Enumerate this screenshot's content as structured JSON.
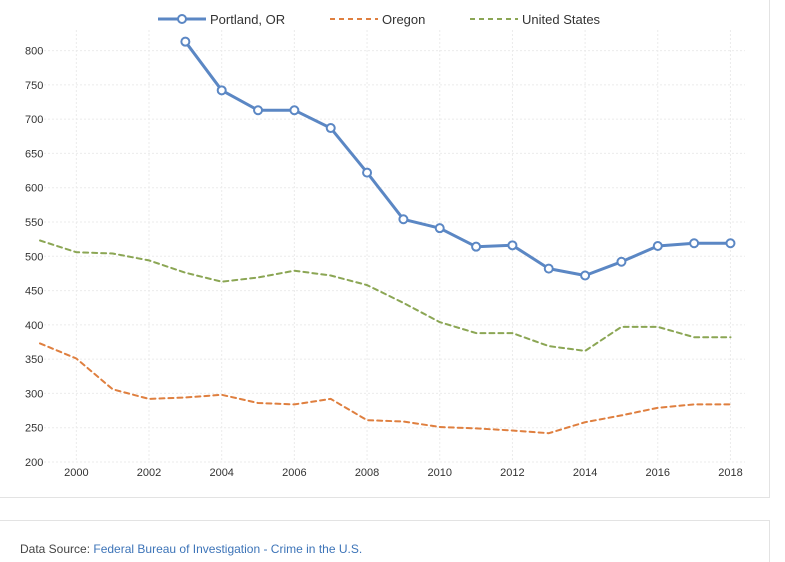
{
  "chart_data": {
    "type": "line",
    "title": "",
    "xlabel": "",
    "ylabel": "",
    "xlim": [
      1999,
      2018.4
    ],
    "ylim": [
      200,
      830
    ],
    "y_ticks": [
      200,
      250,
      300,
      350,
      400,
      450,
      500,
      550,
      600,
      650,
      700,
      750,
      800
    ],
    "x_ticks": [
      2000,
      2002,
      2004,
      2006,
      2008,
      2010,
      2012,
      2014,
      2016,
      2018
    ],
    "grid": true,
    "legend_position": "top",
    "series": [
      {
        "name": "Portland, OR",
        "color": "#5b87c4",
        "style": "solid-markers",
        "x": [
          2003,
          2004,
          2005,
          2006,
          2007,
          2008,
          2009,
          2010,
          2011,
          2012,
          2013,
          2014,
          2015,
          2016,
          2017,
          2018
        ],
        "values": [
          813,
          742,
          713,
          713,
          687,
          622,
          554,
          541,
          514,
          516,
          482,
          472,
          492,
          515,
          519,
          519
        ]
      },
      {
        "name": "Oregon",
        "color": "#df7f3f",
        "style": "dashed",
        "x": [
          1999,
          2000,
          2001,
          2002,
          2003,
          2004,
          2005,
          2006,
          2007,
          2008,
          2009,
          2010,
          2011,
          2012,
          2013,
          2014,
          2015,
          2016,
          2017,
          2018
        ],
        "values": [
          373,
          351,
          306,
          292,
          294,
          298,
          286,
          284,
          292,
          261,
          259,
          251,
          249,
          246,
          242,
          258,
          268,
          279,
          284,
          284
        ]
      },
      {
        "name": "United States",
        "color": "#8ba654",
        "style": "dashed",
        "x": [
          1999,
          2000,
          2001,
          2002,
          2003,
          2004,
          2005,
          2006,
          2007,
          2008,
          2009,
          2010,
          2011,
          2012,
          2013,
          2014,
          2015,
          2016,
          2017,
          2018
        ],
        "values": [
          523,
          506,
          504,
          494,
          476,
          463,
          469,
          479,
          472,
          458,
          432,
          404,
          388,
          388,
          369,
          362,
          397,
          397,
          382,
          382
        ]
      }
    ]
  },
  "source": {
    "prefix": "Data Source: ",
    "link_text": "Federal Bureau of Investigation - Crime in the U.S."
  }
}
